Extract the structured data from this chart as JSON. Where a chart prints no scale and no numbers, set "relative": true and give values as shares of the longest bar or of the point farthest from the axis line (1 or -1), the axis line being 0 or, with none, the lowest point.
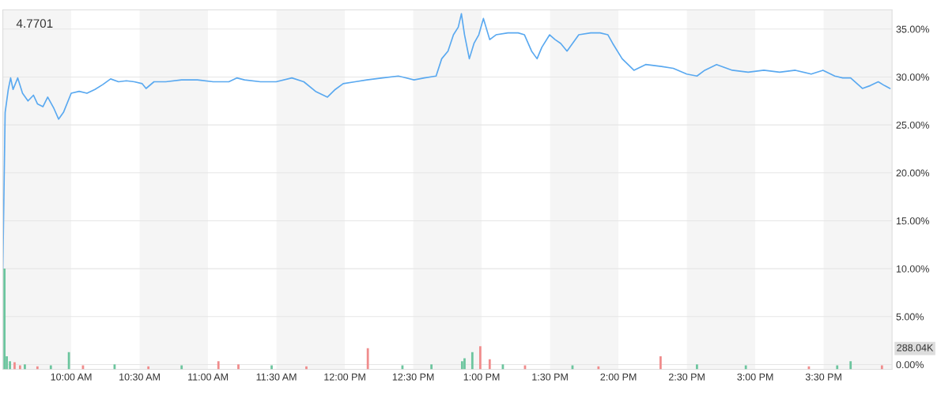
{
  "chart_data": [
    {
      "type": "line",
      "annotations": [
        "4.7701"
      ],
      "x": [
        9.5,
        9.517,
        9.54,
        9.557,
        9.575,
        9.609,
        9.644,
        9.684,
        9.724,
        9.753,
        9.793,
        9.828,
        9.874,
        9.908,
        9.943,
        10.0,
        10.058,
        10.115,
        10.173,
        10.23,
        10.288,
        10.346,
        10.403,
        10.461,
        10.519,
        10.547,
        10.605,
        10.691,
        10.806,
        10.922,
        11.037,
        11.152,
        11.21,
        11.267,
        11.383,
        11.498,
        11.613,
        11.7,
        11.786,
        11.873,
        11.93,
        11.988,
        12.075,
        12.161,
        12.276,
        12.391,
        12.506,
        12.581,
        12.667,
        12.708,
        12.754,
        12.794,
        12.829,
        12.852,
        12.875,
        12.91,
        12.944,
        12.979,
        13.013,
        13.059,
        13.105,
        13.192,
        13.267,
        13.313,
        13.365,
        13.405,
        13.44,
        13.497,
        13.537,
        13.578,
        13.624,
        13.71,
        13.797,
        13.866,
        13.923,
        13.958,
        14.027,
        14.113,
        14.199,
        14.314,
        14.401,
        14.499,
        14.574,
        14.631,
        14.717,
        14.832,
        14.948,
        15.063,
        15.178,
        15.293,
        15.409,
        15.495,
        15.581,
        15.639,
        15.697,
        15.783,
        15.841,
        15.899,
        15.945,
        15.985
      ],
      "series": [
        {
          "color": "#5aa9f0",
          "values": [
            10.0,
            26.3,
            28.7,
            29.9,
            28.7,
            29.9,
            28.3,
            27.5,
            28.1,
            27.2,
            26.9,
            27.9,
            26.7,
            25.6,
            26.3,
            28.3,
            28.5,
            28.3,
            28.7,
            29.2,
            29.8,
            29.5,
            29.6,
            29.5,
            29.3,
            28.8,
            29.5,
            29.5,
            29.7,
            29.7,
            29.5,
            29.5,
            29.9,
            29.7,
            29.5,
            29.5,
            29.9,
            29.5,
            28.5,
            27.9,
            28.7,
            29.3,
            29.5,
            29.7,
            29.9,
            30.1,
            29.7,
            29.9,
            30.1,
            31.9,
            32.7,
            34.4,
            35.2,
            36.6,
            34.4,
            31.9,
            33.5,
            34.4,
            36.1,
            33.9,
            34.4,
            34.6,
            34.6,
            34.4,
            32.7,
            31.9,
            33.1,
            34.4,
            33.9,
            33.5,
            32.7,
            34.4,
            34.6,
            34.6,
            34.4,
            33.5,
            31.9,
            30.7,
            31.3,
            31.1,
            30.9,
            30.3,
            30.1,
            30.7,
            31.3,
            30.7,
            30.5,
            30.7,
            30.5,
            30.7,
            30.3,
            30.7,
            30.1,
            29.9,
            29.9,
            28.8,
            29.1,
            29.5,
            29.1,
            28.8
          ]
        }
      ],
      "xlim": [
        9.5,
        16.0
      ],
      "xticks": [
        {
          "value": 10.0,
          "label": "10:00 AM"
        },
        {
          "value": 10.5,
          "label": "10:30 AM"
        },
        {
          "value": 11.0,
          "label": "11:00 AM"
        },
        {
          "value": 11.5,
          "label": "11:30 AM"
        },
        {
          "value": 12.0,
          "label": "12:00 PM"
        },
        {
          "value": 12.5,
          "label": "12:30 PM"
        },
        {
          "value": 13.0,
          "label": "1:00 PM"
        },
        {
          "value": 13.5,
          "label": "1:30 PM"
        },
        {
          "value": 14.0,
          "label": "2:00 PM"
        },
        {
          "value": 14.5,
          "label": "2:30 PM"
        },
        {
          "value": 15.0,
          "label": "3:00 PM"
        },
        {
          "value": 15.5,
          "label": "3:30 PM"
        }
      ],
      "ylim": [
        -0.5,
        37
      ],
      "yticks": [
        {
          "value": 0,
          "label": "0.00%"
        },
        {
          "value": 5,
          "label": "5.00%"
        },
        {
          "value": 10,
          "label": "10.00%"
        },
        {
          "value": 15,
          "label": "15.00%"
        },
        {
          "value": 20,
          "label": "20.00%"
        },
        {
          "value": 25,
          "label": "25.00%"
        },
        {
          "value": 30,
          "label": "30.00%"
        },
        {
          "value": 35,
          "label": "35.00%"
        }
      ],
      "grid": "y",
      "bands": [
        {
          "axis": "x",
          "from": 9.5,
          "to": 10.0,
          "color": "#f5f5f5"
        },
        {
          "axis": "x",
          "from": 10.5,
          "to": 11.0,
          "color": "#f5f5f5"
        },
        {
          "axis": "x",
          "from": 11.5,
          "to": 12.0,
          "color": "#f5f5f5"
        },
        {
          "axis": "x",
          "from": 12.5,
          "to": 13.0,
          "color": "#f5f5f5"
        },
        {
          "axis": "x",
          "from": 13.5,
          "to": 14.0,
          "color": "#f5f5f5"
        },
        {
          "axis": "x",
          "from": 14.5,
          "to": 15.0,
          "color": "#f5f5f5"
        },
        {
          "axis": "x",
          "from": 15.5,
          "to": 16.0,
          "color": "#f5f5f5"
        }
      ]
    },
    {
      "type": "bar",
      "relative": true,
      "annotations": [
        "288.04K"
      ],
      "xlim": [
        9.5,
        16.0
      ],
      "x": [
        9.512,
        9.529,
        9.552,
        9.586,
        9.626,
        9.661,
        9.753,
        9.851,
        9.983,
        10.086,
        10.317,
        10.564,
        10.807,
        11.076,
        11.222,
        11.465,
        11.719,
        12.168,
        12.421,
        12.633,
        12.857,
        12.875,
        12.932,
        12.99,
        13.059,
        13.155,
        13.317,
        13.664,
        13.854,
        14.308,
        14.574,
        14.931,
        15.392,
        15.599,
        15.697,
        15.926
      ],
      "values": [
        1.0,
        0.13,
        0.08,
        0.07,
        0.04,
        0.05,
        0.03,
        0.04,
        0.17,
        0.04,
        0.05,
        0.03,
        0.04,
        0.08,
        0.05,
        0.04,
        0.03,
        0.21,
        0.04,
        0.05,
        0.08,
        0.11,
        0.17,
        0.23,
        0.1,
        0.05,
        0.04,
        0.04,
        0.03,
        0.13,
        0.05,
        0.04,
        0.03,
        0.04,
        0.08,
        0.04
      ],
      "colors": [
        "#6cc59e",
        "#6cc59e",
        "#6cc59e",
        "#f08c8c",
        "#f08c8c",
        "#6cc59e",
        "#f08c8c",
        "#6cc59e",
        "#6cc59e",
        "#f08c8c",
        "#6cc59e",
        "#f08c8c",
        "#6cc59e",
        "#f08c8c",
        "#f08c8c",
        "#6cc59e",
        "#f08c8c",
        "#f08c8c",
        "#6cc59e",
        "#6cc59e",
        "#6cc59e",
        "#6cc59e",
        "#6cc59e",
        "#f08c8c",
        "#f08c8c",
        "#6cc59e",
        "#f08c8c",
        "#6cc59e",
        "#f08c8c",
        "#f08c8c",
        "#6cc59e",
        "#6cc59e",
        "#f08c8c",
        "#6cc59e",
        "#6cc59e",
        "#f08c8c"
      ]
    }
  ]
}
